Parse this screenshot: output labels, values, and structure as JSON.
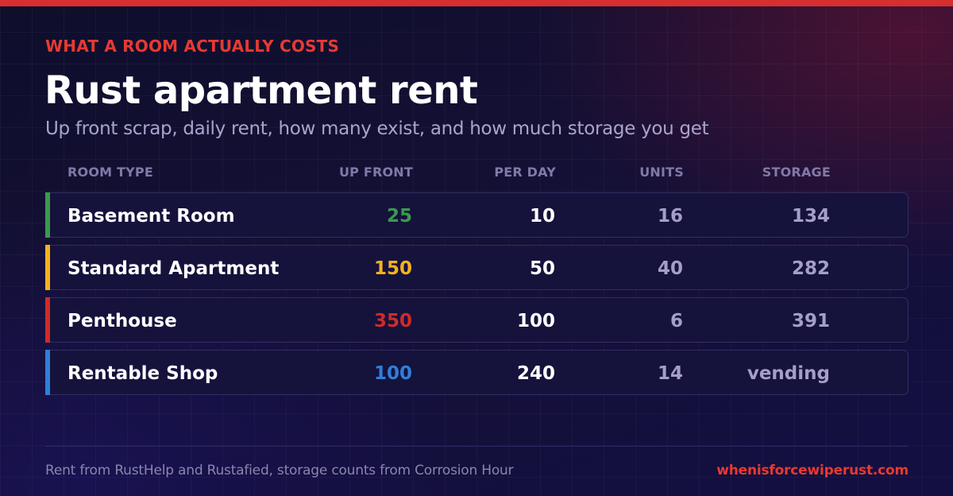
{
  "header": {
    "eyebrow": "WHAT A ROOM ACTUALLY COSTS",
    "title": "Rust apartment rent",
    "subtitle": "Up front scrap, daily rent, how many exist, and how much storage you get"
  },
  "table": {
    "columns": [
      "ROOM TYPE",
      "UP FRONT",
      "PER DAY",
      "UNITS",
      "STORAGE"
    ],
    "rows": [
      {
        "type": "Basement Room",
        "up_front": "25",
        "per_day": "10",
        "units": "16",
        "storage": "134",
        "accent": "#3a9a4e"
      },
      {
        "type": "Standard Apartment",
        "up_front": "150",
        "per_day": "50",
        "units": "40",
        "storage": "282",
        "accent": "#f4b21f"
      },
      {
        "type": "Penthouse",
        "up_front": "350",
        "per_day": "100",
        "units": "6",
        "storage": "391",
        "accent": "#cf2b2b"
      },
      {
        "type": "Rentable Shop",
        "up_front": "100",
        "per_day": "240",
        "units": "14",
        "storage": "vending",
        "accent": "#2f7fd8"
      }
    ]
  },
  "footer": {
    "source": "Rent from RustHelp and Rustafied, storage counts from Corrosion Hour",
    "site": "whenisforcewiperust.com"
  },
  "colors": {
    "accent_red": "#e63a32",
    "top_bar": "#d72f2f",
    "background": "#141035"
  }
}
